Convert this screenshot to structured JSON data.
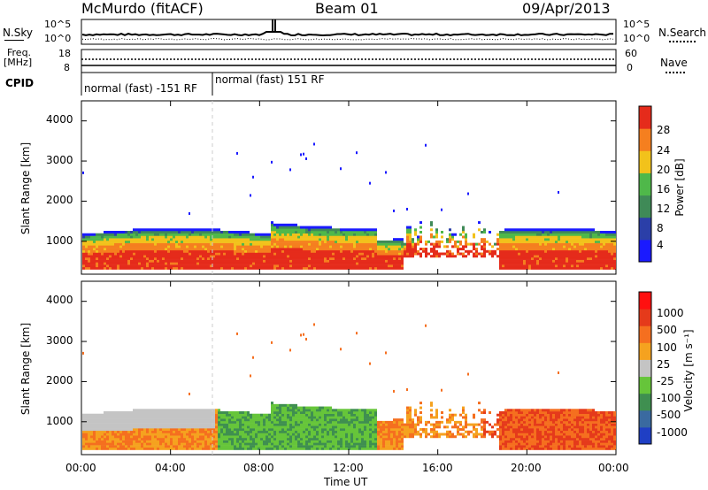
{
  "header": {
    "station": "McMurdo (fitACF)",
    "beam": "Beam 01",
    "date": "09/Apr/2013"
  },
  "top_panel": {
    "nsky_label": "N.Sky",
    "nsearch_label": "N.Search",
    "left_ticks": [
      "10^5",
      "10^0"
    ],
    "right_ticks": [
      "10^5",
      "10^0"
    ],
    "freq_label": "Freq.",
    "freq_unit": "[MHz]",
    "freq_ticks": [
      "18",
      "8"
    ],
    "nave_label": "Nave",
    "nave_ticks": [
      "60",
      "0"
    ],
    "cpid_label": "CPID",
    "cpid_segments": [
      "normal (fast) -151 RF",
      "normal (fast) 151 RF"
    ]
  },
  "chart_data": [
    {
      "type": "heatmap",
      "title": "",
      "xlabel": "",
      "ylabel": "Slant Range [km]",
      "ylim": [
        180,
        4500
      ],
      "y_ticks": [
        "1000",
        "2000",
        "3000",
        "4000"
      ],
      "x_ticks": [
        "00:00",
        "04:00",
        "08:00",
        "12:00",
        "16:00",
        "20:00",
        "00:00"
      ],
      "colorbar_label": "Power [dB]",
      "colorbar_ticks": [
        "4",
        "8",
        "12",
        "16",
        "20",
        "24",
        "28"
      ],
      "colorbar_colors": [
        "#1a1aff",
        "#2b3fa8",
        "#3f8a57",
        "#4fb84a",
        "#f2c21b",
        "#f57f1f",
        "#e52b1b"
      ],
      "grid": false
    },
    {
      "type": "heatmap",
      "title": "",
      "xlabel": "Time UT",
      "ylabel": "Slant Range [km]",
      "ylim": [
        180,
        4500
      ],
      "y_ticks": [
        "1000",
        "2000",
        "3000",
        "4000"
      ],
      "x_ticks": [
        "00:00",
        "04:00",
        "08:00",
        "12:00",
        "16:00",
        "20:00",
        "00:00"
      ],
      "colorbar_label": "Velocity [m s⁻¹]",
      "colorbar_ticks": [
        "1000",
        "500",
        "100",
        "25",
        "-25",
        "-100",
        "-500",
        "-1000"
      ],
      "colorbar_colors": [
        "#1f3fc4",
        "#3a6aa0",
        "#3f8f50",
        "#66c53a",
        "#c4c4c4",
        "#f5a21f",
        "#f56f1f",
        "#e53a1b",
        "#ff1010"
      ],
      "grid": false
    }
  ]
}
